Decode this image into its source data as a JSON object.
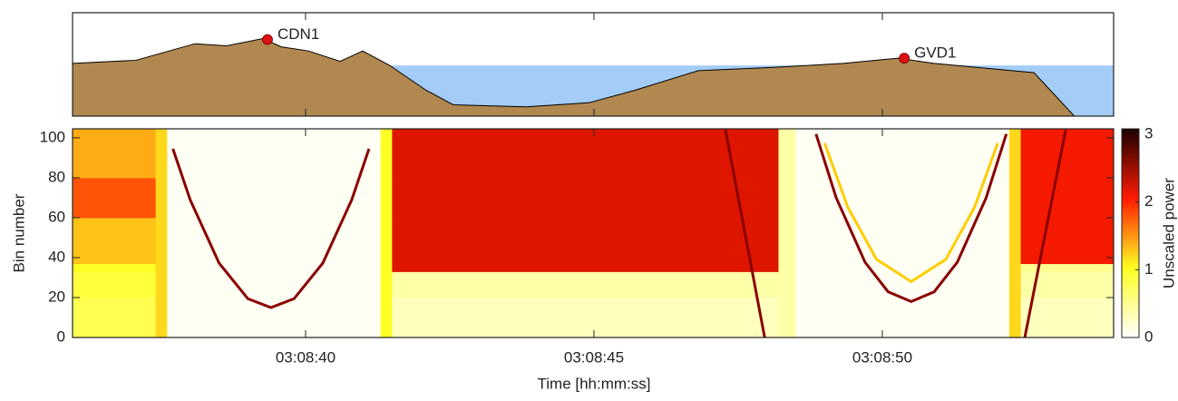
{
  "chart_data": [
    {
      "type": "area",
      "x": [
        35.96,
        37.06,
        38.08,
        38.63,
        39.26,
        39.58,
        40.05,
        40.6,
        40.99,
        41.46,
        42.09,
        42.56,
        43.82,
        44.92,
        45.71,
        46.81,
        48.07,
        49.32,
        50.27,
        50.9,
        52.63,
        53.33
      ],
      "values": [
        0.51,
        0.54,
        0.7,
        0.68,
        0.75,
        0.67,
        0.63,
        0.53,
        0.63,
        0.49,
        0.25,
        0.11,
        0.09,
        0.13,
        0.25,
        0.44,
        0.47,
        0.51,
        0.56,
        0.51,
        0.42,
        0
      ],
      "color": "#b08850",
      "water_level": 0.49,
      "water_color": "#a3cdf7",
      "stations": [
        {
          "name": "CDN1",
          "x": 39.34,
          "y": 0.74
        },
        {
          "name": "GVD1",
          "x": 50.38,
          "y": 0.56
        }
      ],
      "marker_color": "#e01010",
      "xlim": [
        35.96,
        54.01
      ],
      "ylim": [
        0,
        1
      ],
      "xticks": [
        40,
        45,
        50
      ]
    },
    {
      "type": "heatmap",
      "x_edges": [
        35.96,
        37.4,
        37.6,
        41.3,
        41.5,
        48.2,
        48.5,
        52.2,
        52.4,
        54.01
      ],
      "y_edges": [
        0,
        20,
        33,
        37,
        60,
        80,
        104.5
      ],
      "values": [
        [
          0.8,
          1.2,
          0.05,
          1.0,
          0.3,
          0.4,
          0.05,
          1.2,
          0.3
        ],
        [
          0.9,
          1.2,
          0.05,
          1.0,
          0.4,
          0.4,
          0.05,
          1.2,
          0.4
        ],
        [
          1.0,
          1.2,
          0.05,
          1.0,
          2.2,
          0.4,
          0.05,
          1.2,
          0.5
        ],
        [
          1.3,
          1.2,
          0.05,
          1.0,
          2.2,
          0.4,
          0.05,
          1.2,
          2.1
        ],
        [
          1.8,
          1.2,
          0.05,
          1.0,
          2.2,
          0.4,
          0.05,
          1.2,
          2.1
        ],
        [
          1.4,
          1.2,
          0.05,
          1.0,
          2.2,
          0.4,
          0.05,
          1.2,
          2.1
        ]
      ],
      "echoes": [
        {
          "color": "#8a0000",
          "x": [
            37.7,
            38.0,
            38.5,
            39.0,
            39.4,
            39.8,
            40.3,
            40.8,
            41.1
          ],
          "y": [
            94.5,
            68.9,
            37.3,
            19.4,
            15,
            19.4,
            37.3,
            68.9,
            94.5
          ]
        },
        {
          "color": "#ffcc00",
          "x": [
            49.0,
            49.4,
            49.9,
            50.5,
            51.1,
            51.6,
            52.0
          ],
          "y": [
            97.3,
            65.3,
            39.1,
            28,
            39.1,
            65.3,
            97.3
          ]
        },
        {
          "color": "#8a0000",
          "x": [
            48.85,
            49.2,
            49.7,
            50.1,
            50.5,
            50.9,
            51.3,
            51.8,
            52.15
          ],
          "y": [
            101.9,
            70,
            37.7,
            22.9,
            18,
            22.9,
            37.7,
            70,
            101.9
          ]
        },
        {
          "color": "#8a0000",
          "x": [
            47.28,
            47.96
          ],
          "y": [
            104,
            0
          ]
        },
        {
          "color": "#8a0000",
          "x": [
            52.47,
            53.18
          ],
          "y": [
            0,
            104
          ]
        }
      ],
      "colormap": [
        "#ffffff",
        "#ffff20",
        "#ff1a00",
        "#1a0000"
      ],
      "clim": [
        0,
        3.08
      ],
      "cticks": [
        0,
        1,
        2,
        3
      ],
      "colorbar_label": "Unscaled power",
      "xlabel": "Time [hh:mm:ss]",
      "ylabel": "Bin number",
      "xlim": [
        35.96,
        54.01
      ],
      "ylim": [
        0,
        104.5
      ],
      "yticks": [
        0,
        20,
        40,
        60,
        80,
        100
      ],
      "xticks": [
        {
          "value": 40,
          "label": "03:08:40"
        },
        {
          "value": 45,
          "label": "03:08:45"
        },
        {
          "value": 50,
          "label": "03:08:50"
        }
      ]
    }
  ]
}
